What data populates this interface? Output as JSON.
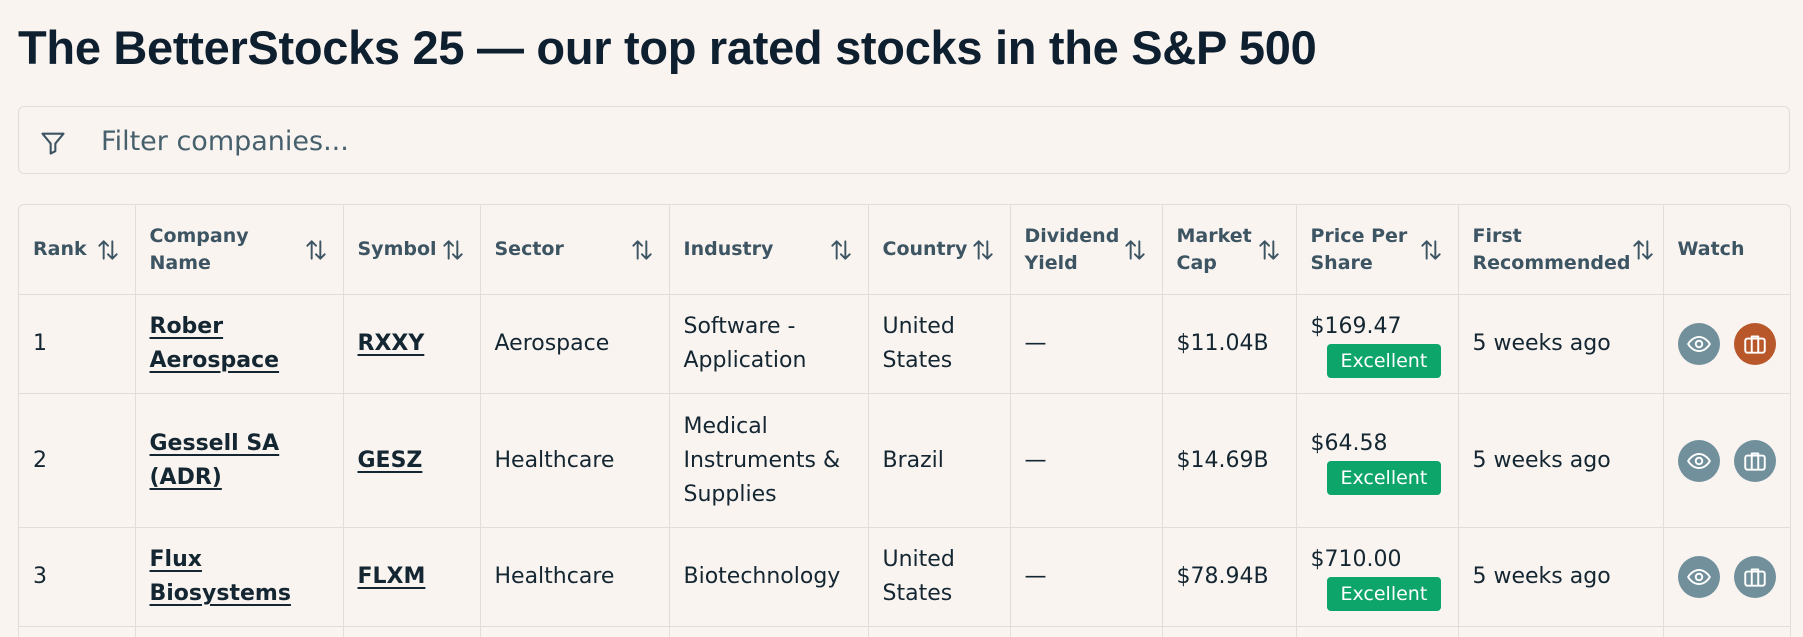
{
  "page": {
    "title": "The BetterStocks 25 — our top rated stocks in the S&P 500"
  },
  "filter": {
    "placeholder": "Filter companies...",
    "value": ""
  },
  "colors": {
    "badge_green": "#0da56a",
    "watch_grey": "#71909b",
    "portfolio_active": "#b8572a",
    "background": "#faf4f1"
  },
  "table": {
    "columns": [
      {
        "label": "Rank",
        "sortable": true
      },
      {
        "label": "Company Name",
        "sortable": true
      },
      {
        "label": "Symbol",
        "sortable": true
      },
      {
        "label": "Sector",
        "sortable": true
      },
      {
        "label": "Industry",
        "sortable": true
      },
      {
        "label": "Country",
        "sortable": true
      },
      {
        "label": "Dividend Yield",
        "sortable": true
      },
      {
        "label": "Market Cap",
        "sortable": true
      },
      {
        "label": "Price Per Share",
        "sortable": true
      },
      {
        "label": "First Recommended",
        "sortable": true
      },
      {
        "label": "Watch",
        "sortable": false
      }
    ],
    "rows": [
      {
        "rank": "1",
        "company": "Rober Aerospace",
        "symbol": "RXXY",
        "sector": "Aerospace",
        "industry": "Software - Application",
        "country": "United States",
        "dividend_yield": "—",
        "market_cap": "$11.04B",
        "price": "$169.47",
        "rating": "Excellent",
        "first_recommended": "5 weeks ago",
        "watch_icon": "eye-icon",
        "portfolio_icon": "briefcase-icon",
        "in_portfolio": true
      },
      {
        "rank": "2",
        "company": "Gessell SA (ADR)",
        "symbol": "GESZ",
        "sector": "Healthcare",
        "industry": "Medical Instruments & Supplies",
        "country": "Brazil",
        "dividend_yield": "—",
        "market_cap": "$14.69B",
        "price": "$64.58",
        "rating": "Excellent",
        "first_recommended": "5 weeks ago",
        "watch_icon": "eye-icon",
        "portfolio_icon": "briefcase-icon",
        "in_portfolio": false
      },
      {
        "rank": "3",
        "company": "Flux Biosystems",
        "symbol": "FLXM",
        "sector": "Healthcare",
        "industry": "Biotechnology",
        "country": "United States",
        "dividend_yield": "—",
        "market_cap": "$78.94B",
        "price": "$710.00",
        "rating": "Excellent",
        "first_recommended": "5 weeks ago",
        "watch_icon": "eye-icon",
        "portfolio_icon": "briefcase-icon",
        "in_portfolio": false
      }
    ]
  }
}
